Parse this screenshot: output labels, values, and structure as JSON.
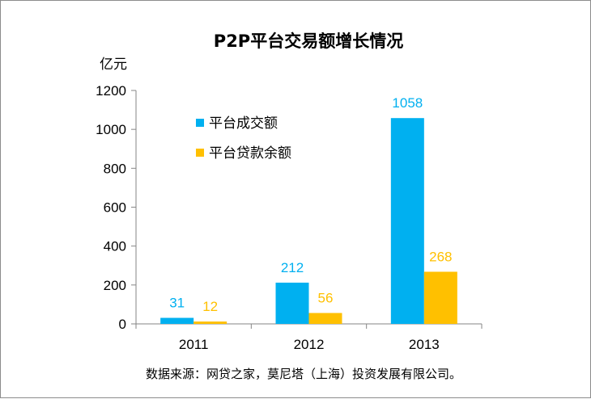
{
  "chart_data": {
    "type": "bar",
    "title": "P2P平台交易额增长情况",
    "ylabel": "亿元",
    "xlabel": "",
    "categories": [
      "2011",
      "2012",
      "2013"
    ],
    "ylim": [
      0,
      1200
    ],
    "yticks": [
      0,
      200,
      400,
      600,
      800,
      1000,
      1200
    ],
    "grid": false,
    "legend_position": "top-left",
    "series": [
      {
        "name": "平台成交额",
        "values": [
          31,
          212,
          1058
        ],
        "color": "#00B0F0"
      },
      {
        "name": "平台贷款余额",
        "values": [
          12,
          56,
          268
        ],
        "color": "#FFC000"
      }
    ],
    "data_labels": true,
    "source_note": "数据来源：网贷之家，莫尼塔（上海）投资发展有限公司。"
  }
}
